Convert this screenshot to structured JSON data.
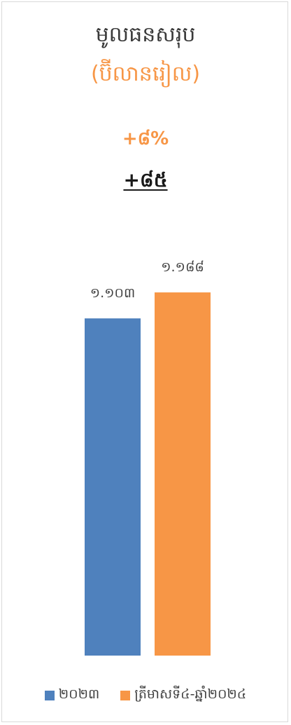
{
  "header": {
    "title": "មូលធនសរុប",
    "subtitle": "(ប៊ីលានរៀល)",
    "growth_pct": "+៨%",
    "growth_abs": "+៨៥"
  },
  "chart_data": {
    "type": "bar",
    "categories": [
      "២០២៣",
      "ត្រីមាសទី៤-ឆ្នាំ២០២៤"
    ],
    "values": [
      1103,
      1188
    ],
    "value_labels": [
      "១.១០៣",
      "១.១៨៨"
    ],
    "colors": [
      "#4f81bd",
      "#f79646"
    ],
    "title": "មូលធនសរុប",
    "subtitle": "(ប៊ីលានរៀល)",
    "ylim": [
      0,
      1250
    ],
    "grid": false,
    "legend_position": "bottom"
  }
}
